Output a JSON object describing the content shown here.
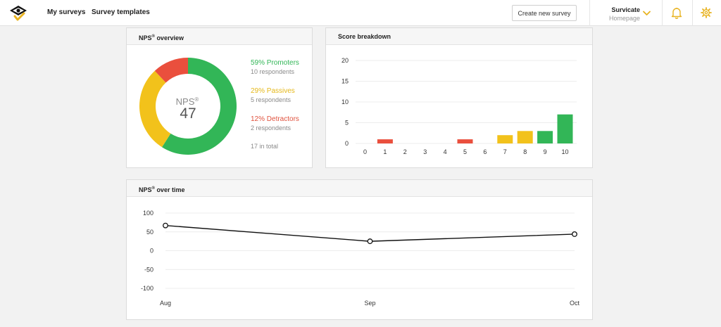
{
  "nav": {
    "my_surveys": "My surveys",
    "survey_templates": "Survey templates",
    "create_button": "Create new survey",
    "account_name": "Survicate",
    "account_sub": "Homepage"
  },
  "colors": {
    "promoters": "#32b657",
    "passives": "#f2c21b",
    "detractors": "#ea4f3d",
    "accent": "#e8b321"
  },
  "icons": {
    "logo": "survicate-logo",
    "account_toggle": "chevron-down-icon",
    "notifications": "bell-icon",
    "settings": "gear-icon"
  },
  "overview": {
    "title": "NPS",
    "title_sup": "®",
    "title_suffix": " overview",
    "center_label": "NPS",
    "center_sup": "®",
    "score": "47",
    "promoters_pct": "59% Promoters",
    "promoters_sub": "10 respondents",
    "passives_pct": "29% Passives",
    "passives_sub": "5 respondents",
    "detractors_pct": "12% Detractors",
    "detractors_sub": "2 respondents",
    "total": "17 in total"
  },
  "breakdown": {
    "title": "Score breakdown"
  },
  "overtime": {
    "title": "NPS",
    "title_sup": "®",
    "title_suffix": " over time"
  },
  "chart_data": [
    {
      "type": "pie",
      "categories": [
        "Promoters",
        "Passives",
        "Detractors"
      ],
      "values": [
        59,
        29,
        12
      ],
      "center_value": 47
    },
    {
      "type": "bar",
      "title": "Score breakdown",
      "categories": [
        "0",
        "1",
        "2",
        "3",
        "4",
        "5",
        "6",
        "7",
        "8",
        "9",
        "10"
      ],
      "values": [
        0,
        1,
        0,
        0,
        0,
        1,
        0,
        2,
        3,
        3,
        7
      ],
      "bar_colors": [
        "detractor",
        "detractor",
        "detractor",
        "detractor",
        "detractor",
        "detractor",
        "detractor",
        "passive",
        "passive",
        "promoter",
        "promoter"
      ],
      "ylim": [
        0,
        20
      ],
      "yticks": [
        0,
        5,
        10,
        15,
        20
      ],
      "grid": true
    },
    {
      "type": "line",
      "title": "NPS over time",
      "categories": [
        "Aug",
        "Sep",
        "Oct"
      ],
      "values": [
        67,
        25,
        44
      ],
      "ylim": [
        -100,
        100
      ],
      "yticks": [
        100,
        50,
        0,
        -50,
        -100
      ],
      "grid": true
    }
  ]
}
